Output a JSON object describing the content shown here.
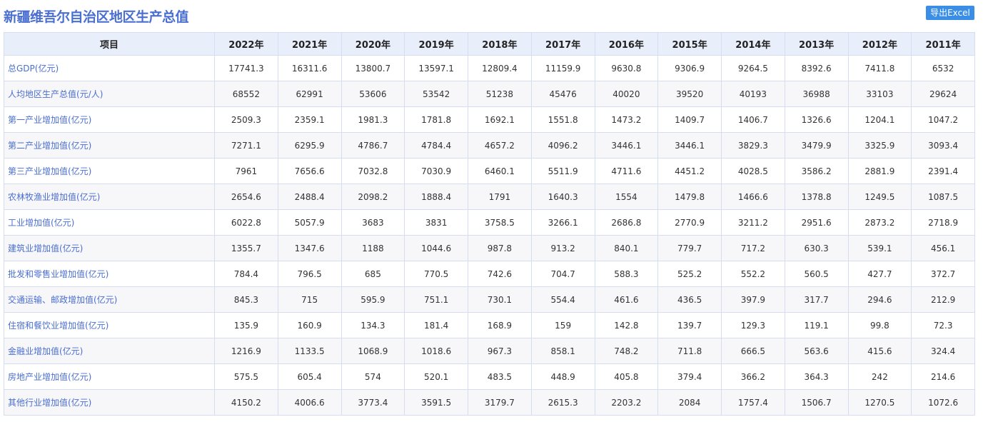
{
  "page": {
    "title": "新疆维吾尔自治区地区生产总值",
    "export_label": "导出Excel"
  },
  "table": {
    "columns": [
      "项目",
      "2022年",
      "2021年",
      "2020年",
      "2019年",
      "2018年",
      "2017年",
      "2016年",
      "2015年",
      "2014年",
      "2013年",
      "2012年",
      "2011年"
    ],
    "rows": [
      {
        "label": "总GDP(亿元)",
        "values": [
          "17741.3",
          "16311.6",
          "13800.7",
          "13597.1",
          "12809.4",
          "11159.9",
          "9630.8",
          "9306.9",
          "9264.5",
          "8392.6",
          "7411.8",
          "6532"
        ]
      },
      {
        "label": "人均地区生产总值(元/人)",
        "values": [
          "68552",
          "62991",
          "53606",
          "53542",
          "51238",
          "45476",
          "40020",
          "39520",
          "40193",
          "36988",
          "33103",
          "29624"
        ]
      },
      {
        "label": "第一产业增加值(亿元)",
        "values": [
          "2509.3",
          "2359.1",
          "1981.3",
          "1781.8",
          "1692.1",
          "1551.8",
          "1473.2",
          "1409.7",
          "1406.7",
          "1326.6",
          "1204.1",
          "1047.2"
        ]
      },
      {
        "label": "第二产业增加值(亿元)",
        "values": [
          "7271.1",
          "6295.9",
          "4786.7",
          "4784.4",
          "4657.2",
          "4096.2",
          "3446.1",
          "3446.1",
          "3829.3",
          "3479.9",
          "3325.9",
          "3093.4"
        ]
      },
      {
        "label": "第三产业增加值(亿元)",
        "values": [
          "7961",
          "7656.6",
          "7032.8",
          "7030.9",
          "6460.1",
          "5511.9",
          "4711.6",
          "4451.2",
          "4028.5",
          "3586.2",
          "2881.9",
          "2391.4"
        ]
      },
      {
        "label": "农林牧渔业增加值(亿元)",
        "values": [
          "2654.6",
          "2488.4",
          "2098.2",
          "1888.4",
          "1791",
          "1640.3",
          "1554",
          "1479.8",
          "1466.6",
          "1378.8",
          "1249.5",
          "1087.5"
        ]
      },
      {
        "label": "工业增加值(亿元)",
        "values": [
          "6022.8",
          "5057.9",
          "3683",
          "3831",
          "3758.5",
          "3266.1",
          "2686.8",
          "2770.9",
          "3211.2",
          "2951.6",
          "2873.2",
          "2718.9"
        ]
      },
      {
        "label": "建筑业增加值(亿元)",
        "values": [
          "1355.7",
          "1347.6",
          "1188",
          "1044.6",
          "987.8",
          "913.2",
          "840.1",
          "779.7",
          "717.2",
          "630.3",
          "539.1",
          "456.1"
        ]
      },
      {
        "label": "批发和零售业增加值(亿元)",
        "values": [
          "784.4",
          "796.5",
          "685",
          "770.5",
          "742.6",
          "704.7",
          "588.3",
          "525.2",
          "552.2",
          "560.5",
          "427.7",
          "372.7"
        ]
      },
      {
        "label": "交通运输、邮政增加值(亿元)",
        "values": [
          "845.3",
          "715",
          "595.9",
          "751.1",
          "730.1",
          "554.4",
          "461.6",
          "436.5",
          "397.9",
          "317.7",
          "294.6",
          "212.9"
        ]
      },
      {
        "label": "住宿和餐饮业增加值(亿元)",
        "values": [
          "135.9",
          "160.9",
          "134.3",
          "181.4",
          "168.9",
          "159",
          "142.8",
          "139.7",
          "129.3",
          "119.1",
          "99.8",
          "72.3"
        ]
      },
      {
        "label": "金融业增加值(亿元)",
        "values": [
          "1216.9",
          "1133.5",
          "1068.9",
          "1018.6",
          "967.3",
          "858.1",
          "748.2",
          "711.8",
          "666.5",
          "563.6",
          "415.6",
          "324.4"
        ]
      },
      {
        "label": "房地产业增加值(亿元)",
        "values": [
          "575.5",
          "605.4",
          "574",
          "520.1",
          "483.5",
          "448.9",
          "405.8",
          "379.4",
          "366.2",
          "364.3",
          "242",
          "214.6"
        ]
      },
      {
        "label": "其他行业增加值(亿元)",
        "values": [
          "4150.2",
          "4006.6",
          "3773.4",
          "3591.5",
          "3179.7",
          "2615.3",
          "2203.2",
          "2084",
          "1757.4",
          "1506.7",
          "1270.5",
          "1072.6"
        ]
      }
    ]
  }
}
